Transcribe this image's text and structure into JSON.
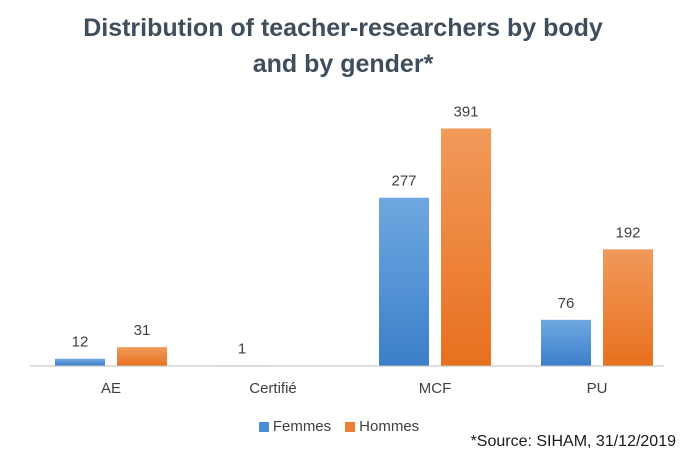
{
  "chart_data": {
    "type": "bar",
    "title_line1": "Distribution of teacher-researchers by body",
    "title_line2": "and by gender*",
    "categories": [
      "AE",
      "Certifié",
      "MCF",
      "PU"
    ],
    "series": [
      {
        "name": "Femmes",
        "color": "#4a8fd4",
        "values": [
          12,
          1,
          277,
          76
        ]
      },
      {
        "name": "Hommes",
        "color": "#ed7d31",
        "values": [
          31,
          null,
          391,
          192
        ]
      }
    ],
    "ylim": [
      0,
      400
    ],
    "grid": false,
    "legend_position": "bottom"
  },
  "source_note": "*Source: SIHAM, 31/12/2019"
}
